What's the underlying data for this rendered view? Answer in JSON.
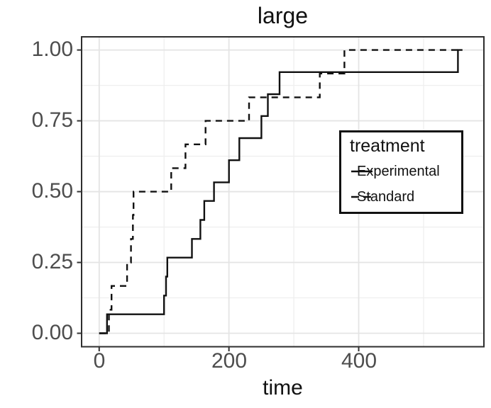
{
  "title": "large",
  "axes": {
    "x_tick_labels": [
      "0",
      "200",
      "400"
    ],
    "y_tick_labels": [
      "0.00",
      "0.25",
      "0.50",
      "0.75",
      "1.00"
    ]
  },
  "legend": {
    "title": "treatment",
    "items": [
      {
        "label": "Experimental",
        "line": "solid"
      },
      {
        "label": "Standard",
        "line": "dashed"
      }
    ]
  },
  "colors": {
    "curve": "#111111",
    "grid_major": "#e4e4e4",
    "grid_minor": "#efefef",
    "panel_border": "#2e2e2e",
    "tick_mark": "#333333",
    "tick_label": "#4d4d4d",
    "text": "#111111",
    "background": "#ffffff"
  },
  "chart_data": {
    "type": "line",
    "subtype": "ecdf-step",
    "title": "large",
    "xlabel": "time",
    "ylabel": "",
    "xlim": [
      -27.1,
      593.0
    ],
    "ylim": [
      -0.0475,
      1.0465
    ],
    "x_ticks": [
      0,
      200,
      400
    ],
    "y_ticks": [
      0,
      0.25,
      0.5,
      0.75,
      1
    ],
    "grid": "major+minor",
    "legend_position": "inside-right",
    "series": [
      {
        "name": "Experimental",
        "linetype": "solid",
        "points": [
          [
            0,
            0
          ],
          [
            12,
            0.067
          ],
          [
            100,
            0.133
          ],
          [
            103,
            0.2
          ],
          [
            105,
            0.267
          ],
          [
            143,
            0.333
          ],
          [
            156,
            0.4
          ],
          [
            162,
            0.467
          ],
          [
            177,
            0.533
          ],
          [
            200,
            0.611
          ],
          [
            216,
            0.689
          ],
          [
            250,
            0.767
          ],
          [
            260,
            0.844
          ],
          [
            278,
            0.922
          ],
          [
            553,
            1.0
          ],
          [
            560,
            1.0
          ]
        ]
      },
      {
        "name": "Standard",
        "linetype": "dashed",
        "points": [
          [
            0,
            0
          ],
          [
            15,
            0.083
          ],
          [
            19,
            0.167
          ],
          [
            43,
            0.25
          ],
          [
            49,
            0.333
          ],
          [
            52,
            0.417
          ],
          [
            53,
            0.5
          ],
          [
            111,
            0.583
          ],
          [
            133,
            0.667
          ],
          [
            164,
            0.75
          ],
          [
            231,
            0.833
          ],
          [
            340,
            0.917
          ],
          [
            378,
            1.0
          ],
          [
            560,
            1.0
          ]
        ]
      }
    ]
  }
}
